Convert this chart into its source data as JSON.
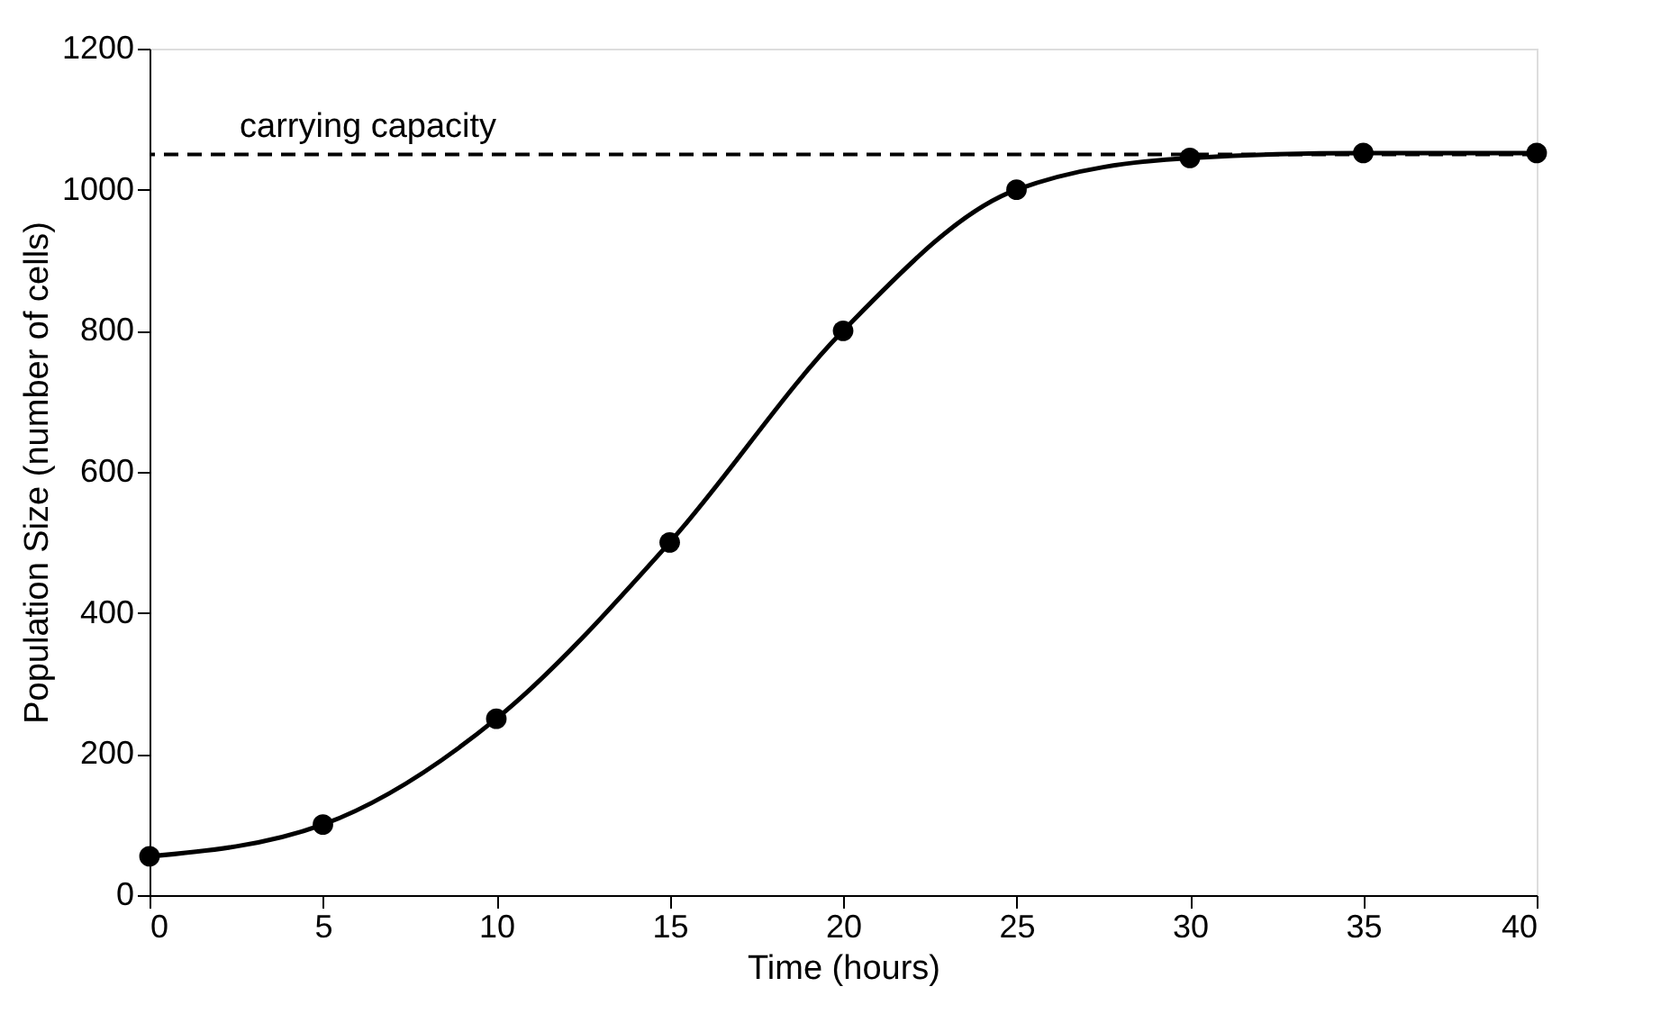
{
  "chart_data": {
    "type": "line",
    "xlabel": "Time (hours)",
    "ylabel": "Population Size (number of cells)",
    "x": [
      0,
      5,
      10,
      15,
      20,
      25,
      30,
      35,
      40
    ],
    "series": [
      {
        "color": "#000000",
        "values": [
          55,
          100,
          250,
          500,
          800,
          1000,
          1045,
          1052,
          1052
        ]
      }
    ],
    "xlim": [
      0,
      40
    ],
    "xticks": [
      0,
      5,
      10,
      15,
      20,
      25,
      30,
      35,
      40
    ],
    "ylim": [
      0,
      1200
    ],
    "yticks": [
      0,
      200,
      400,
      600,
      800,
      1000,
      1200
    ],
    "ref_lines": [
      {
        "axis": "y",
        "value": 1050,
        "label": "carrying capacity",
        "color": "#000000",
        "line_style": "dashed"
      }
    ],
    "marker": "circle",
    "line_style": "solid",
    "grid": false
  }
}
